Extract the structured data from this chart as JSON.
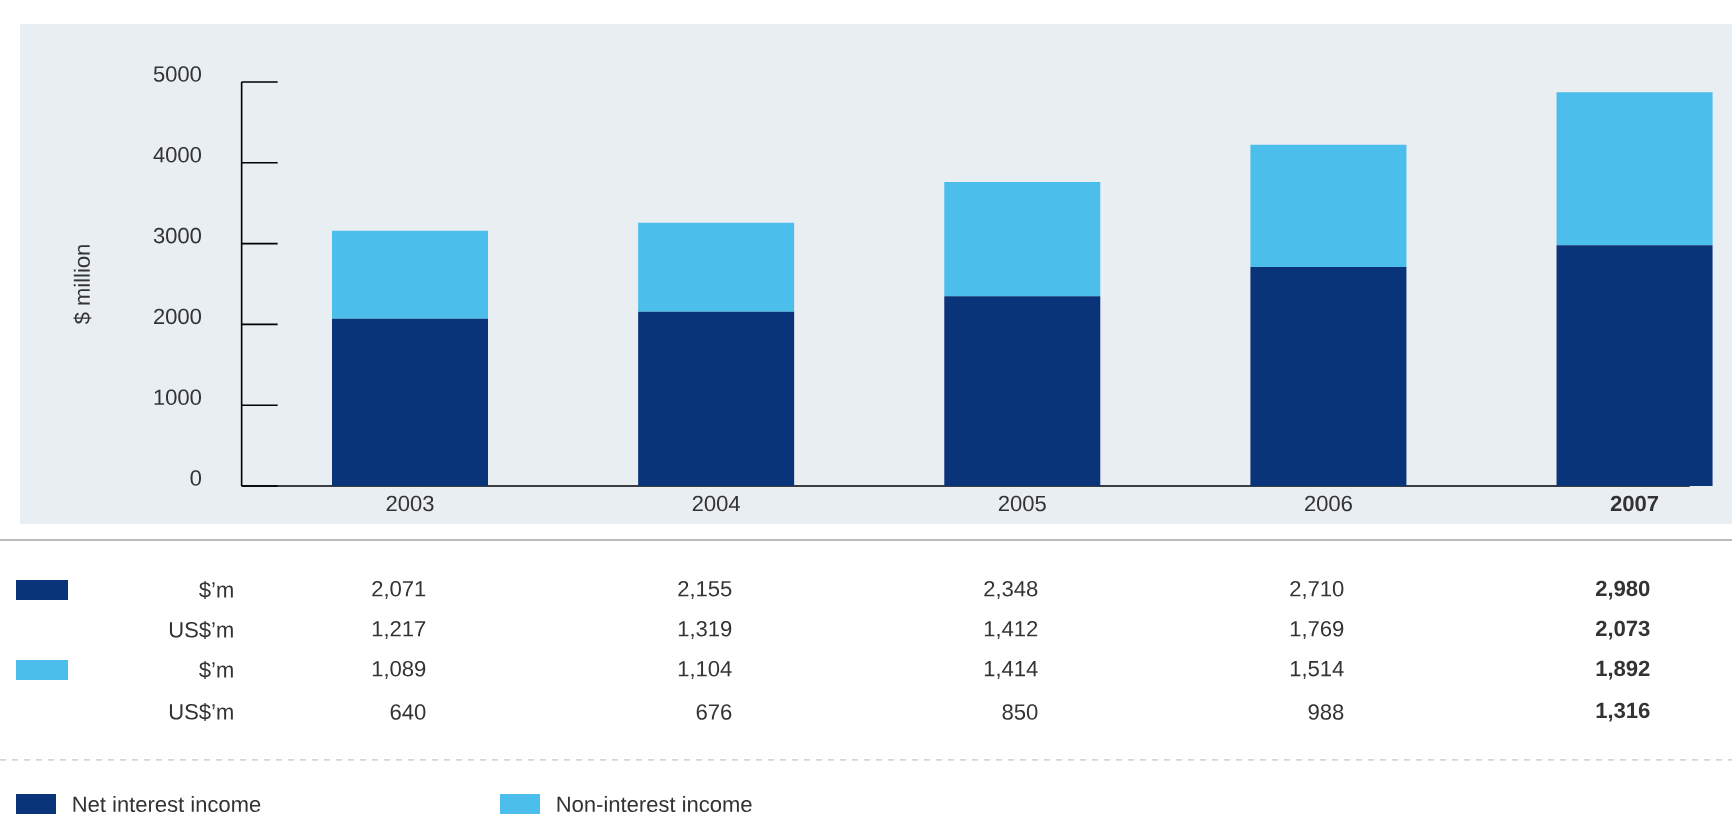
{
  "chart_data": {
    "type": "bar",
    "stacked": true,
    "ylabel": "$ million",
    "categories": [
      "2003",
      "2004",
      "2005",
      "2006",
      "2007"
    ],
    "series": [
      {
        "name": "Net interest income",
        "color": "#0a3479",
        "values": [
          2071,
          2155,
          2348,
          2710,
          2980
        ],
        "value_labels": [
          "2,071",
          "2,155",
          "2,348",
          "2,710",
          "2,980"
        ]
      },
      {
        "name": "Non-interest income",
        "color": "#4bbeeb",
        "values": [
          1089,
          1104,
          1414,
          1514,
          1892
        ],
        "value_labels": [
          "1,089",
          "1,104",
          "1,414",
          "1,514",
          "1,892"
        ]
      }
    ],
    "annotations": [
      "$’m",
      "US$’m",
      "1,217",
      "1,319",
      "1,412",
      "1,769",
      "2,073",
      "$’m",
      "US$’m",
      "640",
      "676",
      "850",
      "988",
      "1,316"
    ],
    "ylim": [
      0,
      5000
    ],
    "yticks": [
      0,
      1000,
      2000,
      3000,
      4000,
      5000
    ],
    "grid": false,
    "legend": "bottom"
  }
}
